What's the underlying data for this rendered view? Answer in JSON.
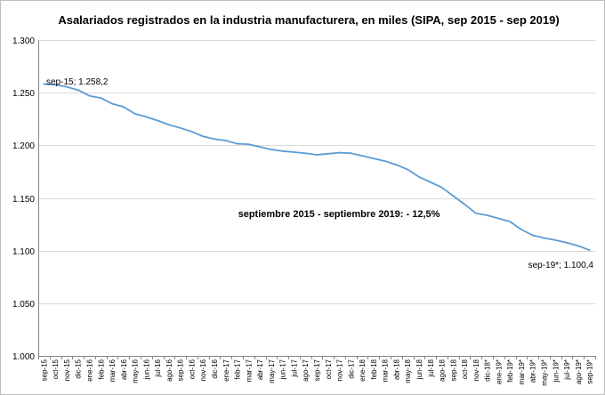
{
  "chart_data": {
    "type": "line",
    "title": "Asalariados registrados en la industria manufacturera, en miles (SIPA, sep 2015 - sep 2019)",
    "xlabel": "",
    "ylabel": "",
    "ylim": [
      1000,
      1300
    ],
    "yticks": [
      1000,
      1050,
      1100,
      1150,
      1200,
      1250,
      1300
    ],
    "ytick_labels": [
      "1.000",
      "1.050",
      "1.100",
      "1.150",
      "1.200",
      "1.250",
      "1.300"
    ],
    "grid": true,
    "line_color": "#5b9bd5",
    "categories": [
      "sep-15",
      "oct-15",
      "nov-15",
      "dic-15",
      "ene-16",
      "feb-16",
      "mar-16",
      "abr-16",
      "may-16",
      "jun-16",
      "jul-16",
      "ago-16",
      "sep-16",
      "oct-16",
      "nov-16",
      "dic-16",
      "ene-17",
      "feb-17",
      "mar-17",
      "abr-17",
      "may-17",
      "jun-17",
      "jul-17",
      "ago-17",
      "sep-17",
      "oct-17",
      "nov-17",
      "dic-17",
      "ene-18",
      "feb-18",
      "mar-18",
      "abr-18",
      "may-18",
      "jun-18",
      "jul-18",
      "ago-18",
      "sep-18",
      "oct-18",
      "nov-18",
      "dic-18*",
      "ene-19*",
      "feb-19*",
      "mar-19*",
      "abr-19*",
      "may-19*",
      "jun-19*",
      "jul-19*",
      "ago-19*",
      "sep-19*"
    ],
    "series": [
      {
        "name": "Asalariados registrados",
        "values": [
          1258.2,
          1257.5,
          1255.5,
          1252.5,
          1247.0,
          1245.0,
          1239.5,
          1236.5,
          1230.0,
          1227.0,
          1223.5,
          1219.5,
          1216.5,
          1213.0,
          1208.5,
          1206.0,
          1204.5,
          1201.5,
          1201.0,
          1198.5,
          1196.0,
          1194.5,
          1193.5,
          1192.5,
          1191.0,
          1192.0,
          1193.0,
          1192.5,
          1190.0,
          1187.5,
          1185.0,
          1181.5,
          1177.0,
          1170.0,
          1165.0,
          1160.0,
          1152.0,
          1144.0,
          1135.5,
          1133.5,
          1130.5,
          1127.5,
          1120.0,
          1114.5,
          1112.0,
          1110.0,
          1107.5,
          1104.5,
          1100.4
        ]
      }
    ],
    "annotations": {
      "start_label": "sep-15; 1.258,2",
      "end_label": "sep-19*; 1.100,4",
      "change_label": "septiembre 2015 - septiembre 2019: - 12,5%"
    }
  }
}
